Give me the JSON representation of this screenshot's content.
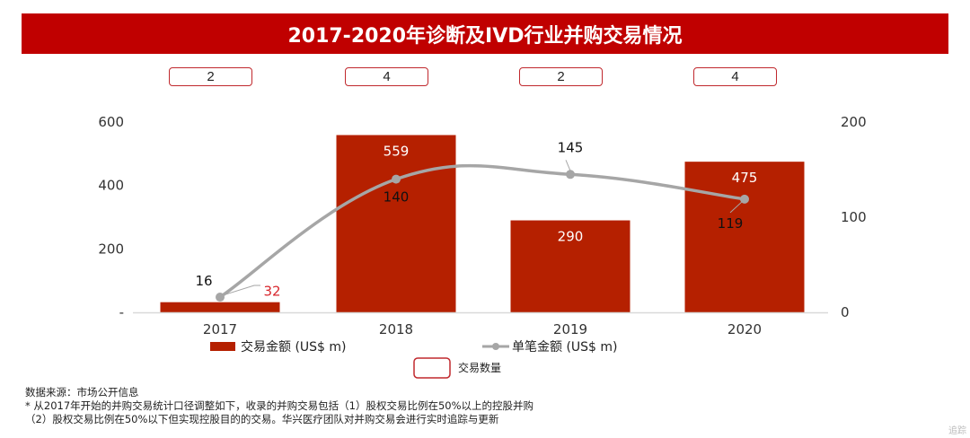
{
  "chart_data": {
    "type": "bar",
    "title": "2017-2020年诊断及IVD行业并购交易情况",
    "categories": [
      "2017",
      "2018",
      "2019",
      "2020"
    ],
    "series": [
      {
        "name": "交易金额 (US$ m)",
        "type": "bar",
        "axis": "left",
        "color": "#b52000",
        "values": [
          32,
          559,
          290,
          475
        ],
        "label_colors": [
          "#d8262c",
          "#ffffff",
          "#ffffff",
          "#ffffff"
        ]
      },
      {
        "name": "单笔金额 (US$ m)",
        "type": "line",
        "axis": "right",
        "color": "#a6a6a6",
        "values": [
          16,
          140,
          145,
          119
        ]
      }
    ],
    "deal_counts": {
      "name": "交易数量",
      "values": [
        2,
        4,
        2,
        4
      ]
    },
    "y_left": {
      "ylim": [
        0,
        600
      ],
      "ticks": [
        0,
        200,
        400,
        600
      ],
      "tick_labels": [
        "-",
        "200",
        "400",
        "600"
      ]
    },
    "y_right": {
      "ylim": [
        0,
        200
      ],
      "ticks": [
        0,
        100,
        200
      ],
      "tick_labels": [
        "0",
        "100",
        "200"
      ]
    },
    "xlabel": "",
    "ylabel": "",
    "grid": false,
    "legend": "bottom"
  },
  "notes": {
    "source": "数据来源：市场公开信息",
    "line1": "* 从2017年开始的并购交易统计口径调整如下，收录的并购交易包括（1）股权交易比例在50%以上的控股并购",
    "line2": "（2）股权交易比例在50%以下但实现控股目的的交易。华兴医疗团队对并购交易会进行实时追踪与更新"
  },
  "watermark": "追踪"
}
